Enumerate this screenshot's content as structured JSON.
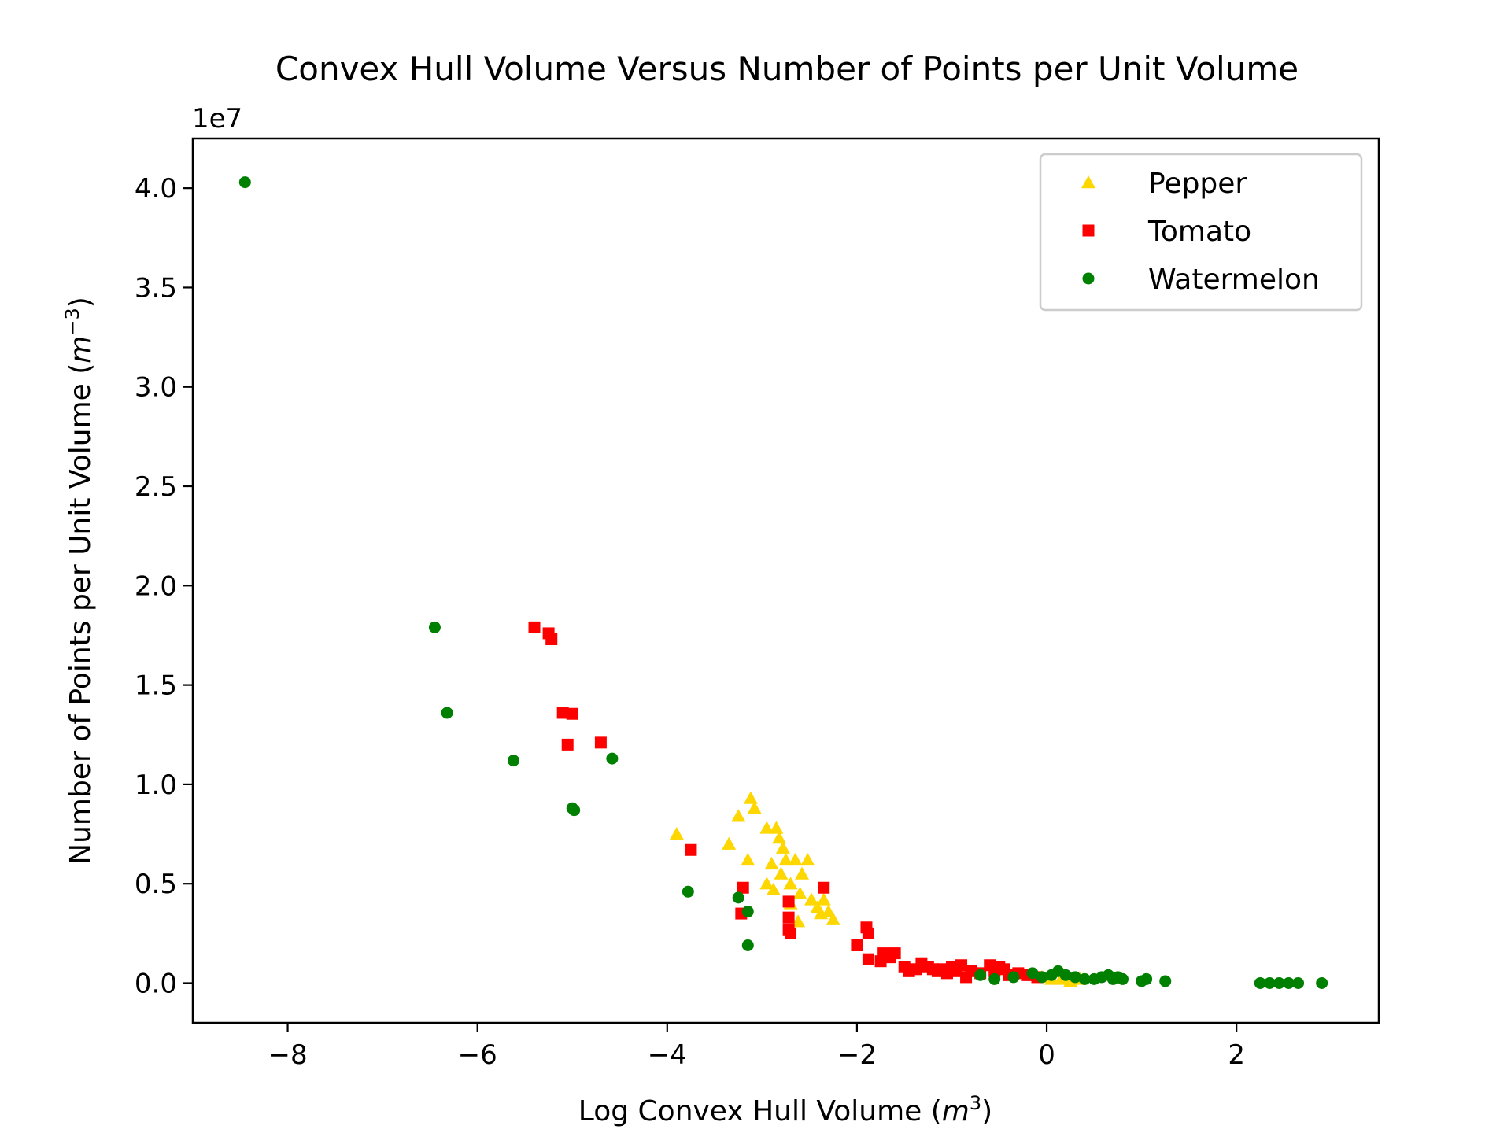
{
  "chart_data": {
    "type": "scatter",
    "title": "Convex Hull Volume Versus Number of Points per Unit Volume",
    "xlabel": "Log Convex Hull Volume (m³)",
    "xlabel_main": "Log Convex Hull Volume (",
    "xlabel_var": "m",
    "xlabel_sup": "3",
    "xlabel_close": ")",
    "ylabel": "Number of Points per Unit Volume (m⁻³)",
    "ylabel_main": "Number of Points per Unit Volume (",
    "ylabel_var": "m",
    "ylabel_sup": "−3",
    "ylabel_close": ")",
    "y_offset_label": "1e7",
    "xlim": [
      -9.0,
      3.5
    ],
    "ylim": [
      -0.2,
      4.25
    ],
    "y_scale_multiplier": 10000000,
    "xticks": [
      -8,
      -6,
      -4,
      -2,
      0,
      2
    ],
    "xtick_labels": [
      "−8",
      "−6",
      "−4",
      "−2",
      "0",
      "2"
    ],
    "yticks": [
      0.0,
      0.5,
      1.0,
      1.5,
      2.0,
      2.5,
      3.0,
      3.5,
      4.0
    ],
    "ytick_labels": [
      "0.0",
      "0.5",
      "1.0",
      "1.5",
      "2.0",
      "2.5",
      "3.0",
      "3.5",
      "4.0"
    ],
    "grid": false,
    "legend_position": "top-right",
    "series": [
      {
        "name": "Pepper",
        "marker": "triangle",
        "color": "#FFD700",
        "points": [
          [
            -3.9,
            0.75
          ],
          [
            -3.35,
            0.7
          ],
          [
            -3.25,
            0.84
          ],
          [
            -3.15,
            0.62
          ],
          [
            -3.12,
            0.93
          ],
          [
            -3.08,
            0.88
          ],
          [
            -2.95,
            0.78
          ],
          [
            -2.85,
            0.78
          ],
          [
            -2.82,
            0.73
          ],
          [
            -2.78,
            0.68
          ],
          [
            -2.9,
            0.6
          ],
          [
            -2.8,
            0.55
          ],
          [
            -2.95,
            0.5
          ],
          [
            -2.88,
            0.47
          ],
          [
            -2.75,
            0.62
          ],
          [
            -2.7,
            0.5
          ],
          [
            -2.65,
            0.62
          ],
          [
            -2.58,
            0.55
          ],
          [
            -2.52,
            0.62
          ],
          [
            -2.6,
            0.45
          ],
          [
            -2.48,
            0.42
          ],
          [
            -2.42,
            0.38
          ],
          [
            -2.38,
            0.35
          ],
          [
            -2.35,
            0.42
          ],
          [
            -2.3,
            0.36
          ],
          [
            -2.25,
            0.32
          ],
          [
            -2.62,
            0.31
          ],
          [
            -2.7,
            0.4
          ],
          [
            -0.05,
            0.03
          ],
          [
            0.05,
            0.02
          ],
          [
            0.15,
            0.02
          ],
          [
            0.25,
            0.01
          ],
          [
            0.35,
            0.02
          ]
        ]
      },
      {
        "name": "Tomato",
        "marker": "square",
        "color": "#FF0000",
        "points": [
          [
            -5.4,
            1.79
          ],
          [
            -5.25,
            1.76
          ],
          [
            -5.22,
            1.73
          ],
          [
            -5.1,
            1.36
          ],
          [
            -5.0,
            1.355
          ],
          [
            -5.05,
            1.2
          ],
          [
            -4.7,
            1.21
          ],
          [
            -3.75,
            0.67
          ],
          [
            -3.2,
            0.48
          ],
          [
            -3.22,
            0.35
          ],
          [
            -2.72,
            0.41
          ],
          [
            -2.72,
            0.33
          ],
          [
            -2.72,
            0.27
          ],
          [
            -2.7,
            0.25
          ],
          [
            -2.35,
            0.48
          ],
          [
            -2.0,
            0.19
          ],
          [
            -1.9,
            0.28
          ],
          [
            -1.88,
            0.25
          ],
          [
            -1.88,
            0.12
          ],
          [
            -1.75,
            0.11
          ],
          [
            -1.72,
            0.15
          ],
          [
            -1.65,
            0.13
          ],
          [
            -1.6,
            0.15
          ],
          [
            -1.5,
            0.08
          ],
          [
            -1.45,
            0.06
          ],
          [
            -1.38,
            0.07
          ],
          [
            -1.32,
            0.1
          ],
          [
            -1.25,
            0.08
          ],
          [
            -1.2,
            0.07
          ],
          [
            -1.15,
            0.06
          ],
          [
            -1.1,
            0.07
          ],
          [
            -1.05,
            0.05
          ],
          [
            -1.0,
            0.08
          ],
          [
            -0.95,
            0.06
          ],
          [
            -0.9,
            0.09
          ],
          [
            -0.85,
            0.03
          ],
          [
            -0.8,
            0.06
          ],
          [
            -0.7,
            0.05
          ],
          [
            -0.6,
            0.09
          ],
          [
            -0.55,
            0.06
          ],
          [
            -0.5,
            0.08
          ],
          [
            -0.45,
            0.07
          ],
          [
            -0.4,
            0.04
          ],
          [
            -0.3,
            0.05
          ],
          [
            -0.2,
            0.04
          ],
          [
            -0.1,
            0.03
          ]
        ]
      },
      {
        "name": "Watermelon",
        "marker": "circle",
        "color": "#008000",
        "points": [
          [
            -8.45,
            4.03
          ],
          [
            -6.45,
            1.79
          ],
          [
            -6.32,
            1.36
          ],
          [
            -5.62,
            1.12
          ],
          [
            -5.0,
            0.88
          ],
          [
            -4.98,
            0.87
          ],
          [
            -4.58,
            1.13
          ],
          [
            -3.78,
            0.46
          ],
          [
            -3.25,
            0.43
          ],
          [
            -3.15,
            0.36
          ],
          [
            -3.15,
            0.19
          ],
          [
            -0.7,
            0.04
          ],
          [
            -0.55,
            0.02
          ],
          [
            -0.35,
            0.03
          ],
          [
            -0.15,
            0.05
          ],
          [
            -0.05,
            0.03
          ],
          [
            0.05,
            0.04
          ],
          [
            0.12,
            0.06
          ],
          [
            0.2,
            0.04
          ],
          [
            0.3,
            0.03
          ],
          [
            0.4,
            0.02
          ],
          [
            0.5,
            0.02
          ],
          [
            0.58,
            0.03
          ],
          [
            0.65,
            0.04
          ],
          [
            0.7,
            0.02
          ],
          [
            0.75,
            0.03
          ],
          [
            0.8,
            0.02
          ],
          [
            1.0,
            0.01
          ],
          [
            1.05,
            0.02
          ],
          [
            1.25,
            0.01
          ],
          [
            2.25,
            0.0
          ],
          [
            2.35,
            0.0
          ],
          [
            2.45,
            0.0
          ],
          [
            2.55,
            0.0
          ],
          [
            2.65,
            0.0
          ],
          [
            2.9,
            0.0
          ]
        ]
      }
    ]
  }
}
